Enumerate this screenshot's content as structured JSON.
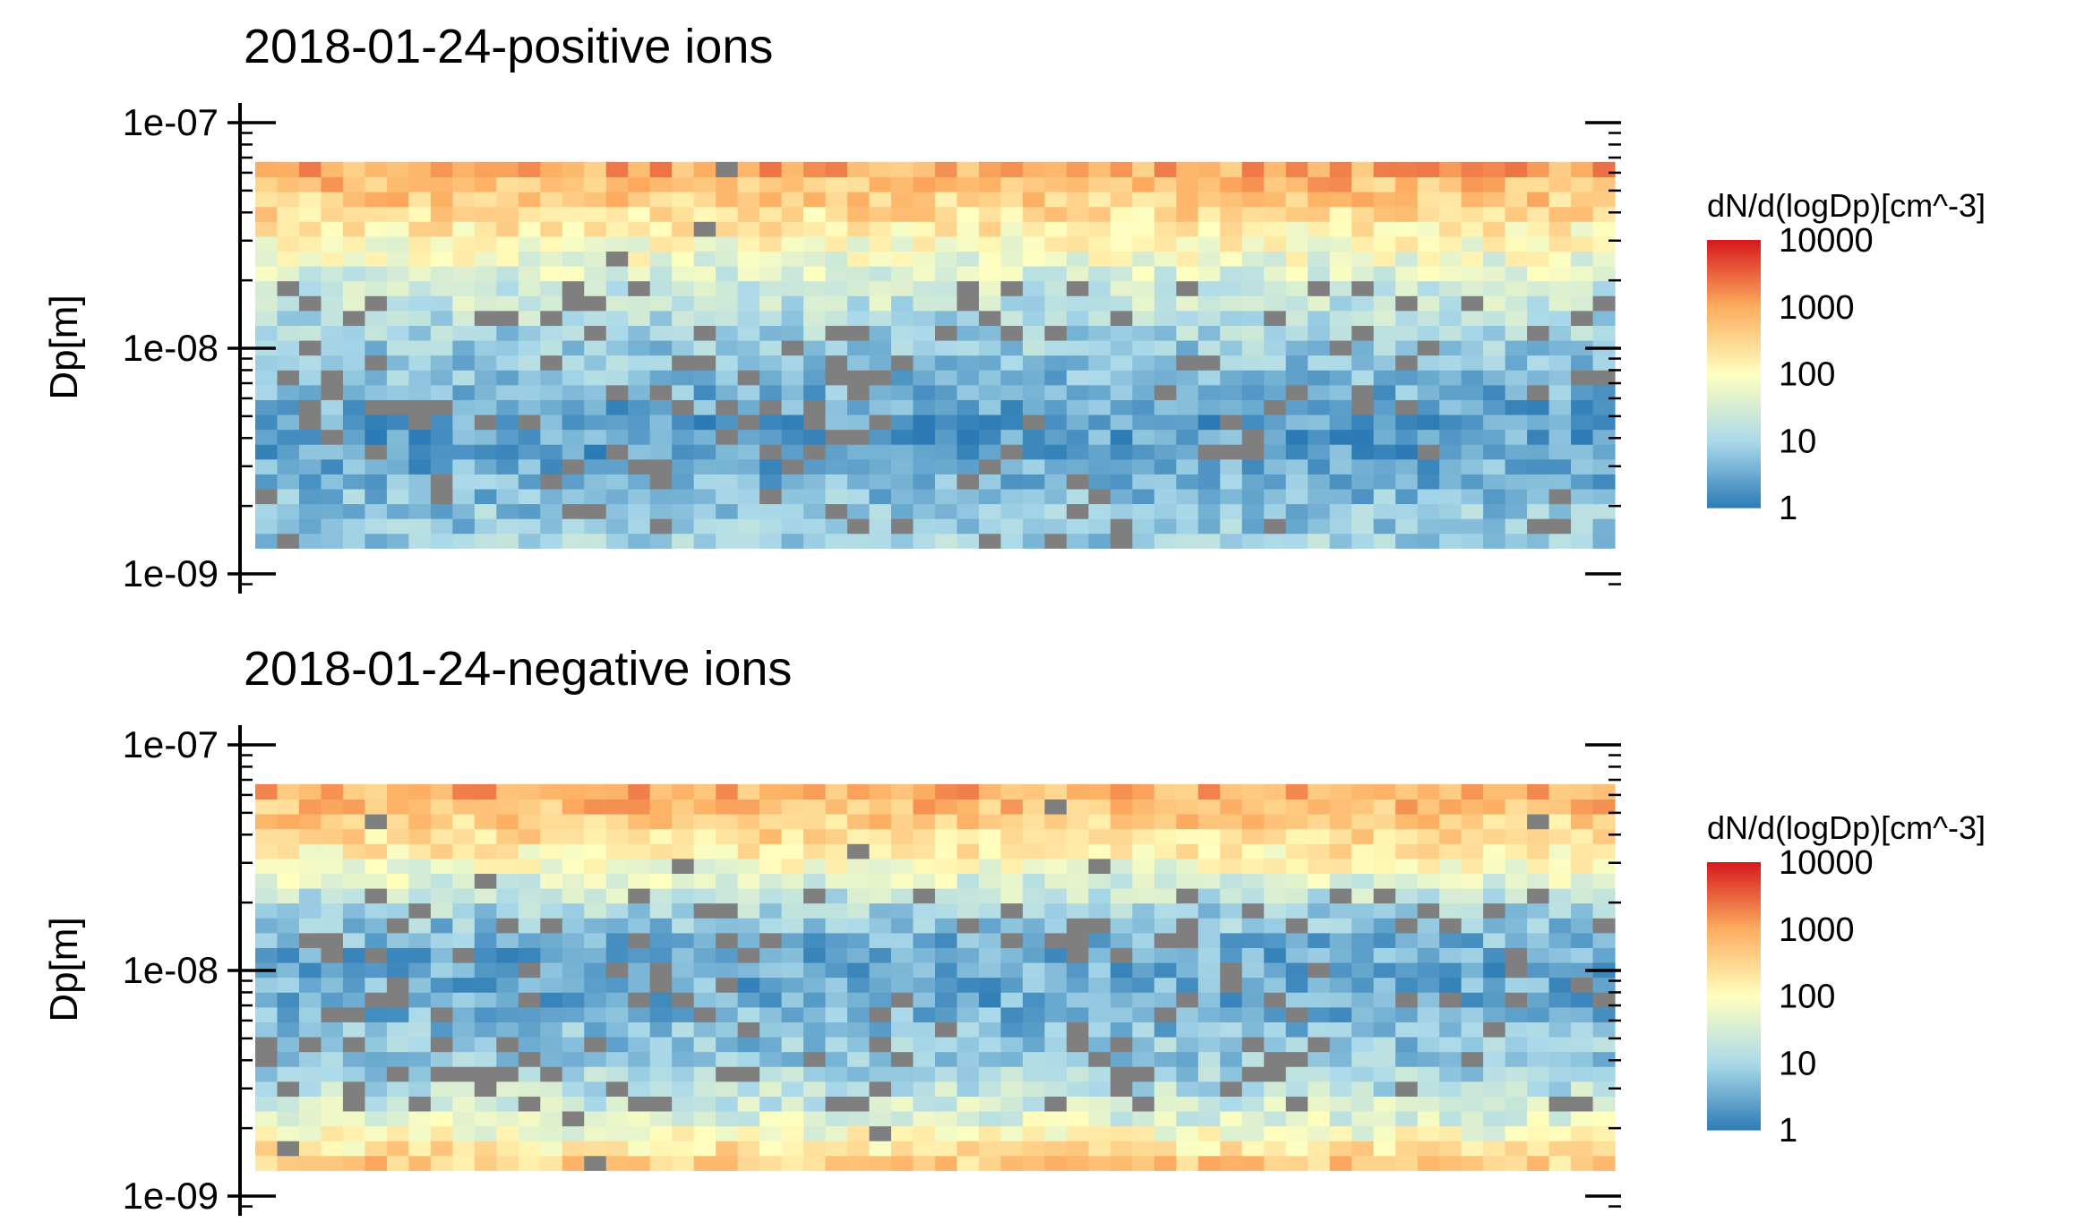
{
  "chart_data": [
    {
      "type": "heatmap",
      "title": "2018-01-24-positive ions",
      "xlabel": "",
      "ylabel": "Dp[m]",
      "yscale": "log",
      "ylim": [
        1e-09,
        1e-07
      ],
      "yticks": [
        "1e-09",
        "1e-08",
        "1e-07"
      ],
      "dp_range": [
        1.3e-09,
        6.7e-08
      ],
      "n_columns": 62,
      "n_rows": 26,
      "missing_color": "#7f7f7f",
      "profile_log10": [
        0.9,
        0.8,
        0.8,
        0.7,
        0.6,
        0.5,
        0.4,
        0.4,
        0.4,
        0.5,
        0.6,
        0.7,
        0.8,
        0.9,
        1.0,
        1.1,
        1.3,
        1.4,
        1.6,
        1.8,
        2.0,
        2.2,
        2.4,
        2.6,
        2.8,
        3.0
      ],
      "legend": {
        "title": "dN/d(logDp)[cm^-3]",
        "labels": [
          "10000",
          "1000",
          "100",
          "10",
          "1"
        ],
        "range_log10": [
          0,
          4
        ],
        "colors": [
          "#2c7bb6",
          "#abd9e9",
          "#ffffbf",
          "#fdae61",
          "#d7191c"
        ]
      }
    },
    {
      "type": "heatmap",
      "title": "2018-01-24-negative ions",
      "xlabel": "",
      "ylabel": "Dp[m]",
      "yscale": "log",
      "ylim": [
        1e-09,
        1e-07
      ],
      "yticks": [
        "1e-09",
        "1e-08",
        "1e-07"
      ],
      "dp_range": [
        1.3e-09,
        6.7e-08
      ],
      "n_columns": 62,
      "n_rows": 26,
      "missing_color": "#7f7f7f",
      "profile_log10": [
        2.6,
        2.3,
        1.9,
        1.6,
        1.4,
        1.2,
        1.0,
        0.9,
        0.8,
        0.7,
        0.6,
        0.5,
        0.5,
        0.5,
        0.5,
        0.6,
        0.8,
        1.0,
        1.3,
        1.6,
        1.9,
        2.2,
        2.4,
        2.6,
        2.8,
        2.9
      ],
      "legend": {
        "title": "dN/d(logDp)[cm^-3]",
        "labels": [
          "10000",
          "1000",
          "100",
          "10",
          "1"
        ],
        "range_log10": [
          0,
          4
        ],
        "colors": [
          "#2c7bb6",
          "#abd9e9",
          "#ffffbf",
          "#fdae61",
          "#d7191c"
        ]
      }
    }
  ]
}
